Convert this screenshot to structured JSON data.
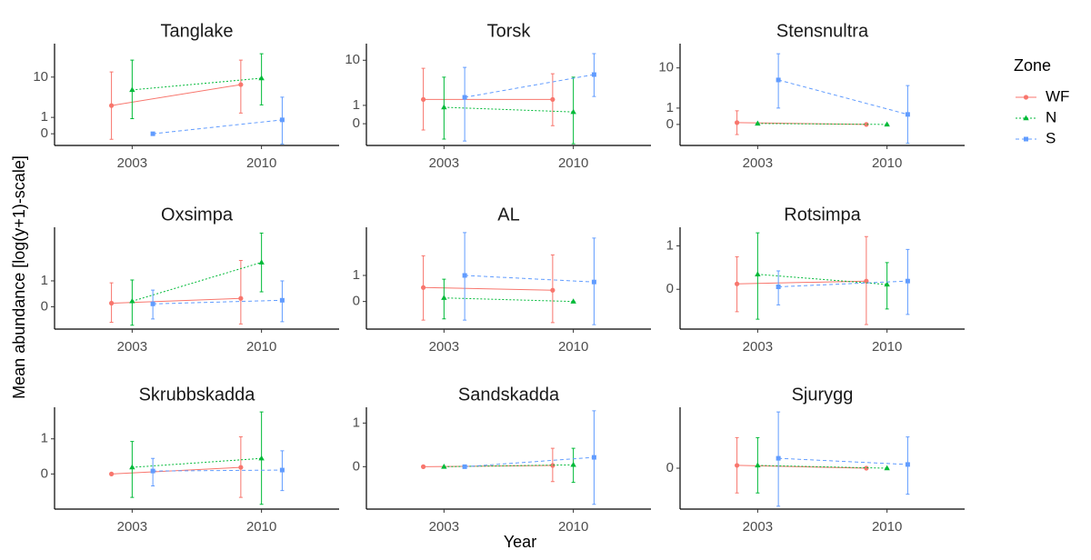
{
  "x_label": "Year",
  "y_label": "Mean abundance [log(y+1)-scale]",
  "legend": {
    "title": "Zone",
    "position": "right"
  },
  "chart_data": [
    {
      "type": "line",
      "title": "Tanglake",
      "categories": [
        "2003",
        "2010"
      ],
      "yscale": "log1p",
      "ylim": [
        -0.39,
        44.3
      ],
      "yticks": [
        0,
        1,
        10
      ],
      "series": [
        {
          "name": "WF",
          "color": "#F8766D",
          "dash": "solid",
          "marker": "circle",
          "values": [
            2.3,
            7.0
          ],
          "lower": [
            -0.21,
            1.4
          ],
          "upper": [
            12.7,
            21.6
          ]
        },
        {
          "name": "N",
          "color": "#00BA38",
          "dash": "dotted",
          "marker": "triangle",
          "values": [
            5.4,
            9.5
          ],
          "lower": [
            0.9,
            2.4
          ],
          "upper": [
            21.6,
            28.6
          ]
        },
        {
          "name": "S",
          "color": "#619CFF",
          "dash": "dashed",
          "marker": "square",
          "values": [
            0,
            0.8
          ],
          "lower": [
            0,
            -0.35
          ],
          "upper": [
            0,
            3.7
          ]
        }
      ]
    },
    {
      "type": "line",
      "title": "Torsk",
      "categories": [
        "2003",
        "2010"
      ],
      "yscale": "log1p",
      "ylim": [
        -0.56,
        19.6
      ],
      "yticks": [
        0,
        1,
        10
      ],
      "series": [
        {
          "name": "WF",
          "color": "#F8766D",
          "dash": "solid",
          "marker": "circle",
          "values": [
            1.5,
            1.5
          ],
          "lower": [
            -0.21,
            -0.07
          ],
          "upper": [
            7.1,
            5.6
          ]
        },
        {
          "name": "N",
          "color": "#00BA38",
          "dash": "dotted",
          "marker": "triangle",
          "values": [
            0.86,
            0.56
          ],
          "lower": [
            -0.44,
            -0.53
          ],
          "upper": [
            4.8,
            4.8
          ]
        },
        {
          "name": "S",
          "color": "#619CFF",
          "dash": "dashed",
          "marker": "square",
          "values": [
            1.71,
            5.4
          ],
          "lower": [
            -0.48,
            1.8
          ],
          "upper": [
            7.4,
            13.1
          ]
        }
      ]
    },
    {
      "type": "line",
      "title": "Stensnultra",
      "categories": [
        "2003",
        "2010"
      ],
      "yscale": "log1p",
      "ylim": [
        -0.59,
        29.8
      ],
      "yticks": [
        0,
        1,
        10
      ],
      "series": [
        {
          "name": "WF",
          "color": "#F8766D",
          "dash": "solid",
          "marker": "circle",
          "values": [
            0.08,
            0
          ],
          "lower": [
            -0.35,
            0
          ],
          "upper": [
            0.78,
            0
          ]
        },
        {
          "name": "N",
          "color": "#00BA38",
          "dash": "dotted",
          "marker": "triangle",
          "values": [
            0.04,
            0
          ],
          "lower": [
            0.04,
            0
          ],
          "upper": [
            0.04,
            0
          ]
        },
        {
          "name": "S",
          "color": "#619CFF",
          "dash": "dashed",
          "marker": "square",
          "values": [
            5.6,
            0.53
          ],
          "lower": [
            1.0,
            -0.55
          ],
          "upper": [
            19.1,
            4.2
          ]
        }
      ]
    },
    {
      "type": "line",
      "title": "Oxsimpa",
      "categories": [
        "2003",
        "2010"
      ],
      "yscale": "log1p",
      "ylim": [
        -0.45,
        7.4
      ],
      "yticks": [
        0,
        1
      ],
      "series": [
        {
          "name": "WF",
          "color": "#F8766D",
          "dash": "solid",
          "marker": "circle",
          "values": [
            0.1,
            0.25
          ],
          "lower": [
            -0.34,
            -0.37
          ],
          "upper": [
            0.9,
            2.45
          ]
        },
        {
          "name": "N",
          "color": "#00BA38",
          "dash": "dotted",
          "marker": "triangle",
          "values": [
            0.16,
            2.28
          ],
          "lower": [
            -0.39,
            0.49
          ],
          "upper": [
            1.05,
            6.2
          ]
        },
        {
          "name": "S",
          "color": "#619CFF",
          "dash": "dashed",
          "marker": "square",
          "values": [
            0.08,
            0.19
          ],
          "lower": [
            -0.28,
            -0.33
          ],
          "upper": [
            0.56,
            1.0
          ]
        }
      ]
    },
    {
      "type": "line",
      "title": "AL",
      "categories": [
        "2003",
        "2010"
      ],
      "yscale": "log1p",
      "ylim": [
        -0.52,
        6.2
      ],
      "yticks": [
        0,
        1
      ],
      "series": [
        {
          "name": "WF",
          "color": "#F8766D",
          "dash": "solid",
          "marker": "circle",
          "values": [
            0.45,
            0.35
          ],
          "lower": [
            -0.39,
            -0.43
          ],
          "upper": [
            2.37,
            2.45
          ]
        },
        {
          "name": "N",
          "color": "#00BA38",
          "dash": "dotted",
          "marker": "triangle",
          "values": [
            0.1,
            0
          ],
          "lower": [
            -0.37,
            0
          ],
          "upper": [
            0.81,
            0
          ]
        },
        {
          "name": "S",
          "color": "#619CFF",
          "dash": "dashed",
          "marker": "square",
          "values": [
            1.0,
            0.68
          ],
          "lower": [
            -0.39,
            -0.46
          ],
          "upper": [
            5.25,
            4.4
          ]
        }
      ]
    },
    {
      "type": "line",
      "title": "Rotsimpa",
      "categories": [
        "2003",
        "2010"
      ],
      "yscale": "log1p",
      "ylim": [
        -0.47,
        1.69
      ],
      "yticks": [
        0,
        1
      ],
      "series": [
        {
          "name": "WF",
          "color": "#F8766D",
          "dash": "solid",
          "marker": "circle",
          "values": [
            0.09,
            0.14
          ],
          "lower": [
            -0.3,
            -0.43
          ],
          "upper": [
            0.68,
            1.32
          ]
        },
        {
          "name": "N",
          "color": "#00BA38",
          "dash": "dotted",
          "marker": "triangle",
          "values": [
            0.27,
            0.08
          ],
          "lower": [
            -0.38,
            -0.27
          ],
          "upper": [
            1.46,
            0.53
          ]
        },
        {
          "name": "S",
          "color": "#619CFF",
          "dash": "dashed",
          "marker": "square",
          "values": [
            0.04,
            0.14
          ],
          "lower": [
            -0.22,
            -0.33
          ],
          "upper": [
            0.34,
            0.89
          ]
        }
      ]
    },
    {
      "type": "line",
      "title": "Skrubbskadda",
      "categories": [
        "2003",
        "2010"
      ],
      "yscale": "log1p",
      "ylim": [
        -0.5,
        2.73
      ],
      "yticks": [
        0,
        1
      ],
      "series": [
        {
          "name": "WF",
          "color": "#F8766D",
          "dash": "solid",
          "marker": "circle",
          "values": [
            0,
            0.14
          ],
          "lower": [
            0,
            -0.37
          ],
          "upper": [
            0,
            1.08
          ]
        },
        {
          "name": "N",
          "color": "#00BA38",
          "dash": "dotted",
          "marker": "triangle",
          "values": [
            0.14,
            0.36
          ],
          "lower": [
            -0.37,
            -0.45
          ],
          "upper": [
            0.9,
            2.4
          ]
        },
        {
          "name": "S",
          "color": "#619CFF",
          "dash": "dashed",
          "marker": "square",
          "values": [
            0.06,
            0.08
          ],
          "lower": [
            -0.21,
            -0.28
          ],
          "upper": [
            0.36,
            0.58
          ]
        }
      ]
    },
    {
      "type": "line",
      "title": "Sandskadda",
      "categories": [
        "2003",
        "2010"
      ],
      "yscale": "log1p",
      "ylim": [
        -0.49,
        1.57
      ],
      "yticks": [
        0,
        1
      ],
      "series": [
        {
          "name": "WF",
          "color": "#F8766D",
          "dash": "solid",
          "marker": "circle",
          "values": [
            0,
            0.02
          ],
          "lower": [
            0,
            -0.21
          ],
          "upper": [
            0,
            0.34
          ]
        },
        {
          "name": "N",
          "color": "#00BA38",
          "dash": "dotted",
          "marker": "triangle",
          "values": [
            0,
            0.03
          ],
          "lower": [
            0,
            -0.22
          ],
          "upper": [
            0,
            0.34
          ]
        },
        {
          "name": "S",
          "color": "#619CFF",
          "dash": "dashed",
          "marker": "square",
          "values": [
            0,
            0.16
          ],
          "lower": [
            0,
            -0.45
          ],
          "upper": [
            0,
            1.43
          ]
        }
      ]
    },
    {
      "type": "line",
      "title": "Sjurygg",
      "categories": [
        "2003",
        "2010"
      ],
      "yscale": "log1p",
      "ylim": [
        -0.35,
        0.9
      ],
      "yticks": [
        0
      ],
      "series": [
        {
          "name": "WF",
          "color": "#F8766D",
          "dash": "solid",
          "marker": "circle",
          "values": [
            0.03,
            0
          ],
          "lower": [
            -0.23,
            0
          ],
          "upper": [
            0.38,
            0
          ]
        },
        {
          "name": "N",
          "color": "#00BA38",
          "dash": "dotted",
          "marker": "triangle",
          "values": [
            0.03,
            0
          ],
          "lower": [
            -0.23,
            0
          ],
          "upper": [
            0.38,
            0
          ]
        },
        {
          "name": "S",
          "color": "#619CFF",
          "dash": "dashed",
          "marker": "square",
          "values": [
            0.11,
            0.04
          ],
          "lower": [
            -0.33,
            -0.24
          ],
          "upper": [
            0.81,
            0.39
          ]
        }
      ]
    }
  ]
}
